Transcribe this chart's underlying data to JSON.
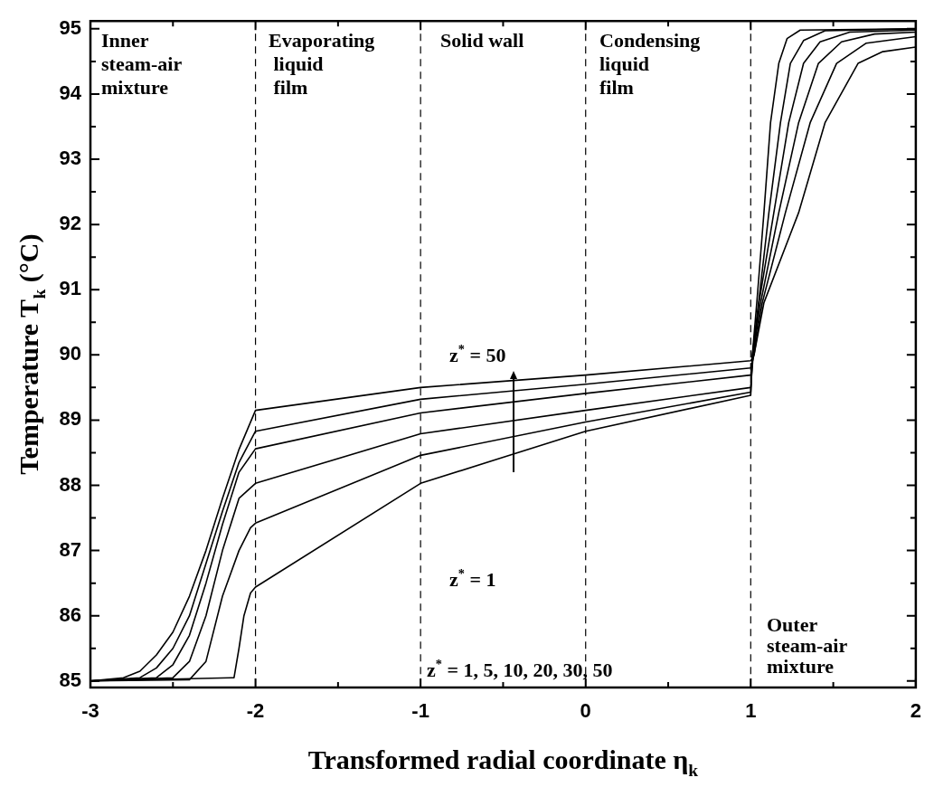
{
  "chart_data": {
    "type": "line",
    "xlabel": "Transformed radial coordinate η$_{k}$",
    "ylabel": "Temperature T$_{k}$ (°C)",
    "xlim": [
      -3,
      2
    ],
    "ylim": [
      84.9,
      95.12
    ],
    "xticks": [
      -3,
      -2,
      -1,
      0,
      1,
      2
    ],
    "yticks": [
      85,
      86,
      87,
      88,
      89,
      90,
      91,
      92,
      93,
      94,
      95
    ],
    "grid": false,
    "legend": false,
    "marker": "none",
    "line_style": "solid",
    "series": [
      {
        "color": "#000000",
        "x": [
          -3,
          -2.8,
          -2.7,
          -2.6,
          -2.5,
          -2.4,
          -2.3,
          -2.2,
          -2.1,
          -2,
          -1,
          0,
          1,
          1.02,
          1.08,
          1.29,
          1.45,
          1.65,
          1.8,
          2
        ],
        "values": [
          85.0,
          85.05,
          85.15,
          85.4,
          85.75,
          86.3,
          87.0,
          87.8,
          88.55,
          89.15,
          89.5,
          89.69,
          89.91,
          90.0,
          90.8,
          92.18,
          93.56,
          94.47,
          94.65,
          94.72
        ]
      },
      {
        "color": "#000000",
        "x": [
          -3,
          -2.7,
          -2.6,
          -2.5,
          -2.4,
          -2.3,
          -2.2,
          -2.1,
          -2,
          -1,
          0,
          1,
          1.02,
          1.07,
          1.21,
          1.36,
          1.52,
          1.7,
          2
        ],
        "values": [
          85.0,
          85.05,
          85.2,
          85.5,
          86.0,
          86.8,
          87.6,
          88.35,
          88.83,
          89.32,
          89.55,
          89.8,
          90.0,
          90.8,
          92.18,
          93.56,
          94.47,
          94.78,
          94.88
        ]
      },
      {
        "color": "#000000",
        "x": [
          -3,
          -2.6,
          -2.5,
          -2.4,
          -2.3,
          -2.2,
          -2.1,
          -2,
          -1,
          0,
          1,
          1.015,
          1.06,
          1.17,
          1.29,
          1.41,
          1.55,
          1.75,
          2
        ],
        "values": [
          85.0,
          85.05,
          85.25,
          85.7,
          86.5,
          87.4,
          88.2,
          88.56,
          89.11,
          89.41,
          89.69,
          90.0,
          90.8,
          92.18,
          93.56,
          94.47,
          94.8,
          94.92,
          94.95
        ]
      },
      {
        "color": "#000000",
        "x": [
          -3,
          -2.5,
          -2.4,
          -2.3,
          -2.2,
          -2.1,
          -2,
          -1,
          0,
          1,
          1.015,
          1.05,
          1.14,
          1.23,
          1.32,
          1.42,
          1.6,
          2
        ],
        "values": [
          85.0,
          85.05,
          85.3,
          86.0,
          87.0,
          87.8,
          88.03,
          88.79,
          89.15,
          89.5,
          90.0,
          90.8,
          92.18,
          93.56,
          94.47,
          94.8,
          94.95,
          94.98
        ]
      },
      {
        "color": "#000000",
        "x": [
          -3,
          -2.4,
          -2.3,
          -2.2,
          -2.1,
          -2.03,
          -2,
          -1,
          0,
          1,
          1.01,
          1.05,
          1.11,
          1.18,
          1.24,
          1.32,
          1.45,
          2
        ],
        "values": [
          85.0,
          85.02,
          85.3,
          86.3,
          87.0,
          87.35,
          87.42,
          88.46,
          88.97,
          89.43,
          90.0,
          90.85,
          92.18,
          93.56,
          94.47,
          94.82,
          94.97,
          95.0
        ]
      },
      {
        "color": "#000000",
        "x": [
          -3,
          -2.13,
          -2.1,
          -2.07,
          -2.03,
          -2,
          -1,
          0,
          1,
          1.01,
          1.04,
          1.08,
          1.12,
          1.17,
          1.22,
          1.3,
          2
        ],
        "values": [
          85.0,
          85.05,
          85.5,
          86.0,
          86.35,
          86.44,
          88.03,
          88.83,
          89.38,
          90.0,
          90.9,
          92.18,
          93.56,
          94.47,
          94.85,
          94.98,
          95.0
        ]
      }
    ],
    "ref_lines": [
      {
        "axis": "x",
        "value": -2,
        "line_style": "dashed"
      },
      {
        "axis": "x",
        "value": -1,
        "line_style": "dashed"
      },
      {
        "axis": "x",
        "value": 0,
        "line_style": "dashed"
      },
      {
        "axis": "x",
        "value": 1,
        "line_style": "dashed"
      }
    ],
    "annotations": [
      "Inner\nsteam-air\nmixture",
      "Evaporating\n liquid\n film",
      "Solid wall",
      "Condensing\nliquid\nfilm",
      "Outer\nsteam-air\nmixture",
      "z$^{*}$ = 50",
      "z$^{*}$ = 1",
      "z$^{*}$ = 1, 5, 10, 20, 30, 50"
    ]
  }
}
